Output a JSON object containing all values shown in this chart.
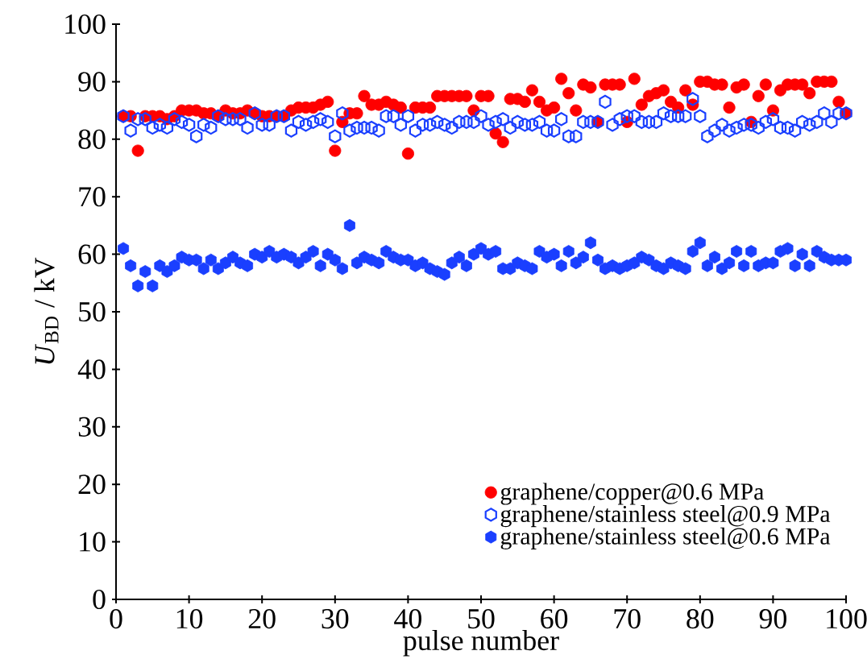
{
  "chart_data": {
    "type": "scatter",
    "xlabel": "pulse number",
    "ylabel": "*U*$_{BD}$ / kV",
    "x": [
      1,
      2,
      3,
      4,
      5,
      6,
      7,
      8,
      9,
      10,
      11,
      12,
      13,
      14,
      15,
      16,
      17,
      18,
      19,
      20,
      21,
      22,
      23,
      24,
      25,
      26,
      27,
      28,
      29,
      30,
      31,
      32,
      33,
      34,
      35,
      36,
      37,
      38,
      39,
      40,
      41,
      42,
      43,
      44,
      45,
      46,
      47,
      48,
      49,
      50,
      51,
      52,
      53,
      54,
      55,
      56,
      57,
      58,
      59,
      60,
      61,
      62,
      63,
      64,
      65,
      66,
      67,
      68,
      69,
      70,
      71,
      72,
      73,
      74,
      75,
      76,
      77,
      78,
      79,
      80,
      81,
      82,
      83,
      84,
      85,
      86,
      87,
      88,
      89,
      90,
      91,
      92,
      93,
      94,
      95,
      96,
      97,
      98,
      99,
      100
    ],
    "series": [
      {
        "name": "graphene/copper@0.6 MPa",
        "color": "#ff0000",
        "values": [
          84,
          84,
          78,
          84,
          84,
          84,
          83.5,
          84,
          85,
          85,
          85,
          84.5,
          84.5,
          84,
          85,
          84.5,
          84.5,
          85,
          84.5,
          84,
          84,
          84,
          84,
          85,
          85.5,
          85.5,
          85.5,
          86,
          86.5,
          78,
          83,
          84.5,
          84.5,
          87.5,
          86,
          86,
          86.5,
          86,
          85.5,
          77.5,
          85.5,
          85.5,
          85.5,
          87.5,
          87.5,
          87.5,
          87.5,
          87.5,
          85,
          87.5,
          87.5,
          81,
          79.5,
          87,
          87,
          86.5,
          88.5,
          86.5,
          85,
          85.5,
          90.5,
          88,
          85,
          89.5,
          89,
          83,
          89.5,
          89.5,
          89.5,
          83,
          90.5,
          86,
          87.5,
          88,
          88.5,
          86.5,
          85.5,
          88.5,
          86,
          90,
          90,
          89.5,
          89.5,
          85.5,
          89,
          89.5,
          83,
          87.5,
          89.5,
          85,
          88.5,
          89.5,
          89.5,
          89.5,
          88,
          90,
          90,
          90,
          86.5,
          84.5
        ]
      },
      {
        "name": "graphene/stainless steel@0.9 MPa",
        "color": "#1a3fff",
        "values": [
          84,
          81.5,
          83.5,
          83.5,
          82,
          82.5,
          82,
          83.5,
          83,
          82.5,
          80.5,
          82.5,
          82,
          84,
          83.5,
          83.5,
          83.5,
          82,
          84.5,
          82.5,
          82.5,
          84,
          84,
          81.5,
          83,
          82.5,
          83,
          83.5,
          83,
          80.5,
          84.5,
          81.5,
          82,
          82,
          82,
          81.5,
          84,
          84,
          82.5,
          84,
          81.5,
          82.5,
          82.5,
          83,
          82.5,
          82,
          83,
          83,
          83,
          84,
          82.5,
          83,
          83.5,
          82,
          83,
          82.5,
          82.5,
          83,
          81.5,
          81.5,
          83.5,
          80.5,
          80.5,
          83,
          83,
          83,
          86.5,
          82.5,
          83.5,
          84,
          84,
          83,
          83,
          83,
          84.5,
          84,
          84,
          84,
          87,
          84,
          80.5,
          81.5,
          82.5,
          81.5,
          82,
          82.5,
          82.5,
          82,
          83,
          83.5,
          82,
          82,
          81.5,
          83,
          82.5,
          83,
          84.5,
          83,
          84.5,
          84.5
        ]
      },
      {
        "name": "graphene/stainless steel@0.6 MPa",
        "color": "#1a3fff",
        "values": [
          61,
          58,
          54.5,
          57,
          54.5,
          58,
          57,
          58,
          59.5,
          59,
          59,
          57.5,
          59,
          57.5,
          58.5,
          59.5,
          58.5,
          58,
          60,
          59.5,
          60.5,
          59.5,
          60,
          59.5,
          58.5,
          59.5,
          60.5,
          58,
          60,
          59,
          57.5,
          65,
          58.5,
          59.5,
          59,
          58.5,
          60.5,
          59.5,
          59,
          59,
          58,
          58.5,
          57.5,
          57,
          56.5,
          58.5,
          59.5,
          58,
          60,
          61,
          60,
          60.5,
          57.5,
          57.5,
          58.5,
          58,
          57.5,
          60.5,
          59.5,
          60,
          58,
          60.5,
          58.5,
          59.5,
          62,
          59,
          57.5,
          58,
          57.5,
          58,
          58.5,
          59.5,
          59,
          58,
          57.5,
          58.5,
          58,
          57.5,
          60.5,
          62,
          58,
          59.5,
          57.5,
          58.5,
          60.5,
          58,
          60.5,
          58,
          58.5,
          58.5,
          60.5,
          61,
          58,
          60,
          58,
          60.5,
          59.5,
          59,
          59,
          59
        ]
      }
    ],
    "xlim": [
      0,
      100
    ],
    "ylim": [
      0,
      100
    ],
    "xticks": [
      0,
      10,
      20,
      30,
      40,
      50,
      60,
      70,
      80,
      90,
      100
    ],
    "yticks": [
      0,
      10,
      20,
      30,
      40,
      50,
      60,
      70,
      80,
      90,
      100
    ],
    "grid": false,
    "legend": "bottom right"
  }
}
